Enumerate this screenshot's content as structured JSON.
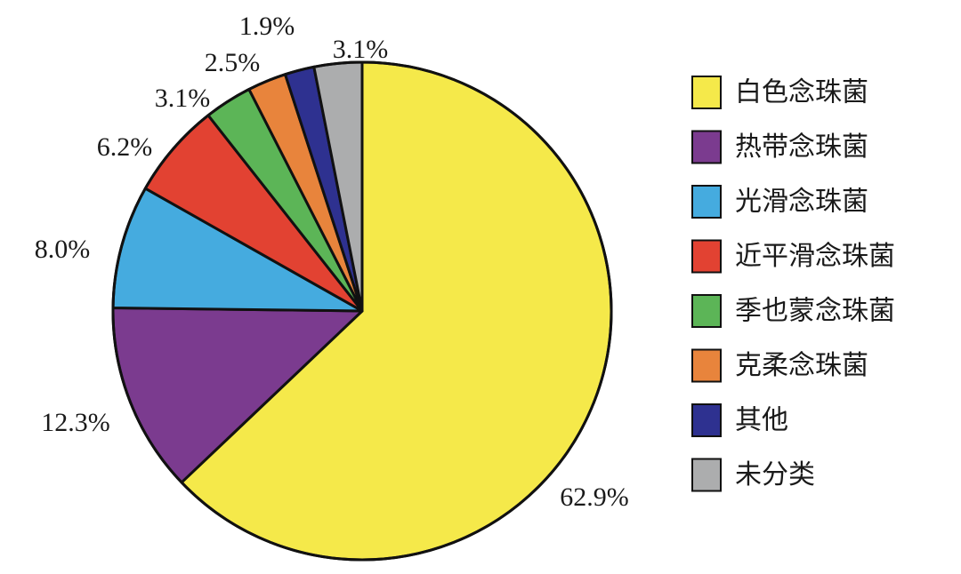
{
  "chart_data": {
    "type": "pie",
    "title": "",
    "slices": [
      {
        "name": "白色念珠菌",
        "value": 62.9,
        "label": "62.9%",
        "color": "#f5e94a"
      },
      {
        "name": "热带念珠菌",
        "value": 12.3,
        "label": "12.3%",
        "color": "#7b3b8f"
      },
      {
        "name": "光滑念珠菌",
        "value": 8.0,
        "label": "8.0%",
        "color": "#45abdf"
      },
      {
        "name": "近平滑念珠菌",
        "value": 6.2,
        "label": "6.2%",
        "color": "#e24232"
      },
      {
        "name": "季也蒙念珠菌",
        "value": 3.1,
        "label": "3.1%",
        "color": "#5cb557"
      },
      {
        "name": "克柔念珠菌",
        "value": 2.5,
        "label": "2.5%",
        "color": "#e8843c"
      },
      {
        "name": "其他",
        "value": 1.9,
        "label": "1.9%",
        "color": "#2e3190"
      },
      {
        "name": "未分类",
        "value": 3.1,
        "label": "3.1%",
        "color": "#acadae"
      }
    ],
    "start": "12 o'clock",
    "direction": "clockwise",
    "legend_position": "right"
  }
}
